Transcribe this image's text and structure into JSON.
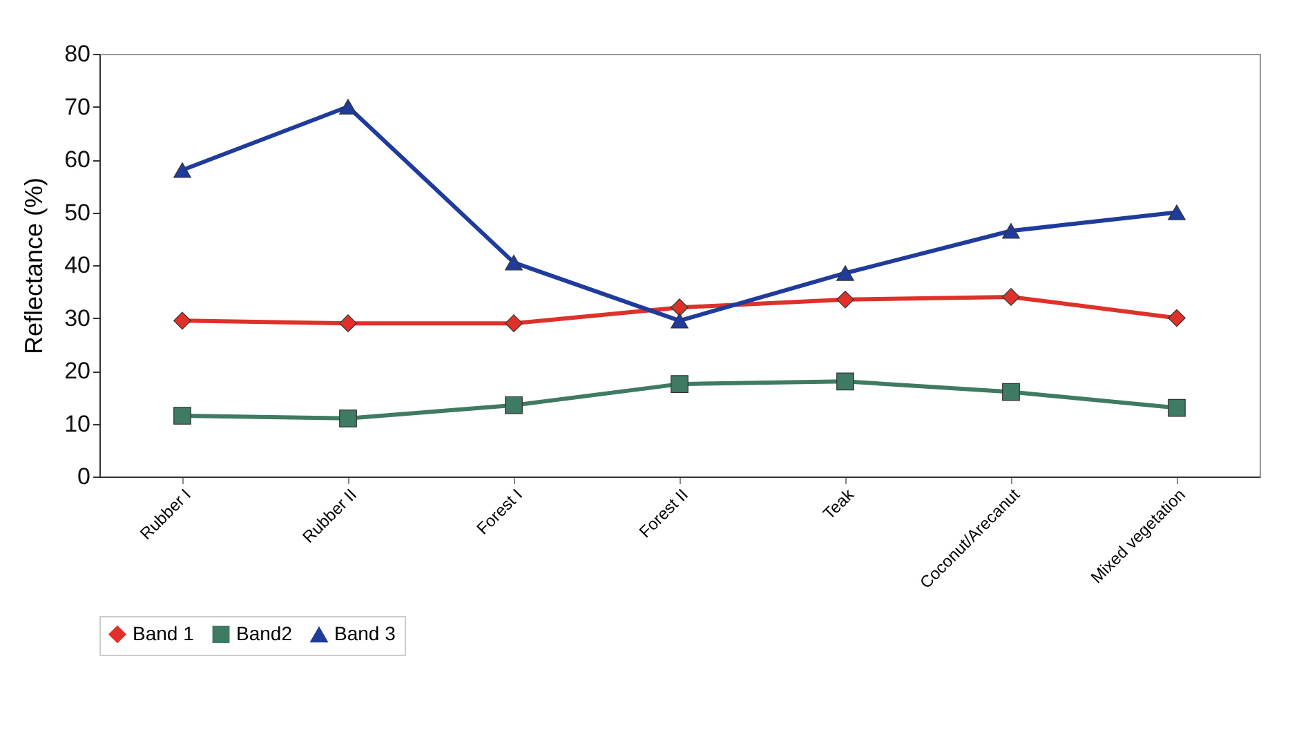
{
  "chart_data": {
    "type": "line",
    "ylabel": "Reflectance (%)",
    "categories": [
      "Rubber I",
      "Rubber II",
      "Forest I",
      "Forest II",
      "Teak",
      "Coconut/Arecanut",
      "Mixed vegetation"
    ],
    "series": [
      {
        "name": "Band 1",
        "color": "#e0302a",
        "marker": "diamond",
        "values": [
          29.5,
          29,
          29,
          32,
          33.5,
          34,
          30
        ]
      },
      {
        "name": "Band2",
        "color": "#3f7a62",
        "marker": "square",
        "values": [
          11.5,
          11,
          13.5,
          17.5,
          18,
          16,
          13
        ]
      },
      {
        "name": "Band 3",
        "color": "#1f3c9c",
        "marker": "triangle",
        "values": [
          58,
          70,
          40.5,
          29.5,
          38.5,
          46.5,
          50
        ]
      }
    ],
    "ylim": [
      0,
      80
    ],
    "yticks": [
      0,
      10,
      20,
      30,
      40,
      50,
      60,
      70,
      80
    ],
    "grid": false,
    "legend": "bottom"
  }
}
